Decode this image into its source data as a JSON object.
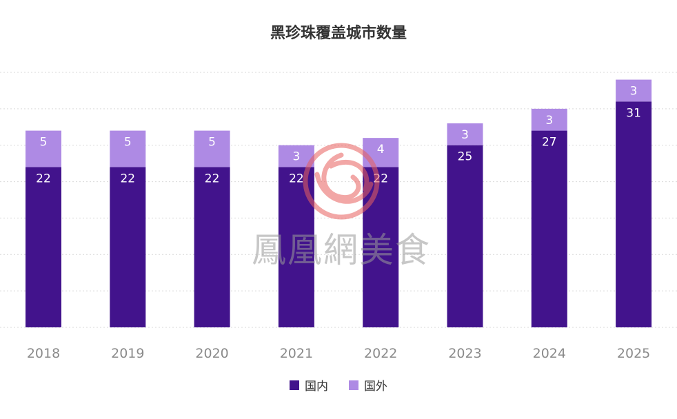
{
  "chart_data": {
    "type": "bar",
    "stacked": true,
    "title": "黑珍珠覆盖城市数量",
    "categories": [
      "2018",
      "2019",
      "2020",
      "2021",
      "2022",
      "2023",
      "2024",
      "2025"
    ],
    "series": [
      {
        "name": "国内",
        "color": "#42138c",
        "values": [
          22,
          22,
          22,
          22,
          22,
          25,
          27,
          31
        ]
      },
      {
        "name": "国外",
        "color": "#ae8ae4",
        "values": [
          5,
          5,
          5,
          3,
          4,
          3,
          3,
          3
        ]
      }
    ],
    "ylim": [
      0,
      35
    ],
    "grid": true,
    "legend": "bottom-center"
  },
  "watermark": {
    "text": "鳳凰網美食",
    "logo": "phoenix-logo-icon",
    "logo_color": "#e8605f"
  }
}
